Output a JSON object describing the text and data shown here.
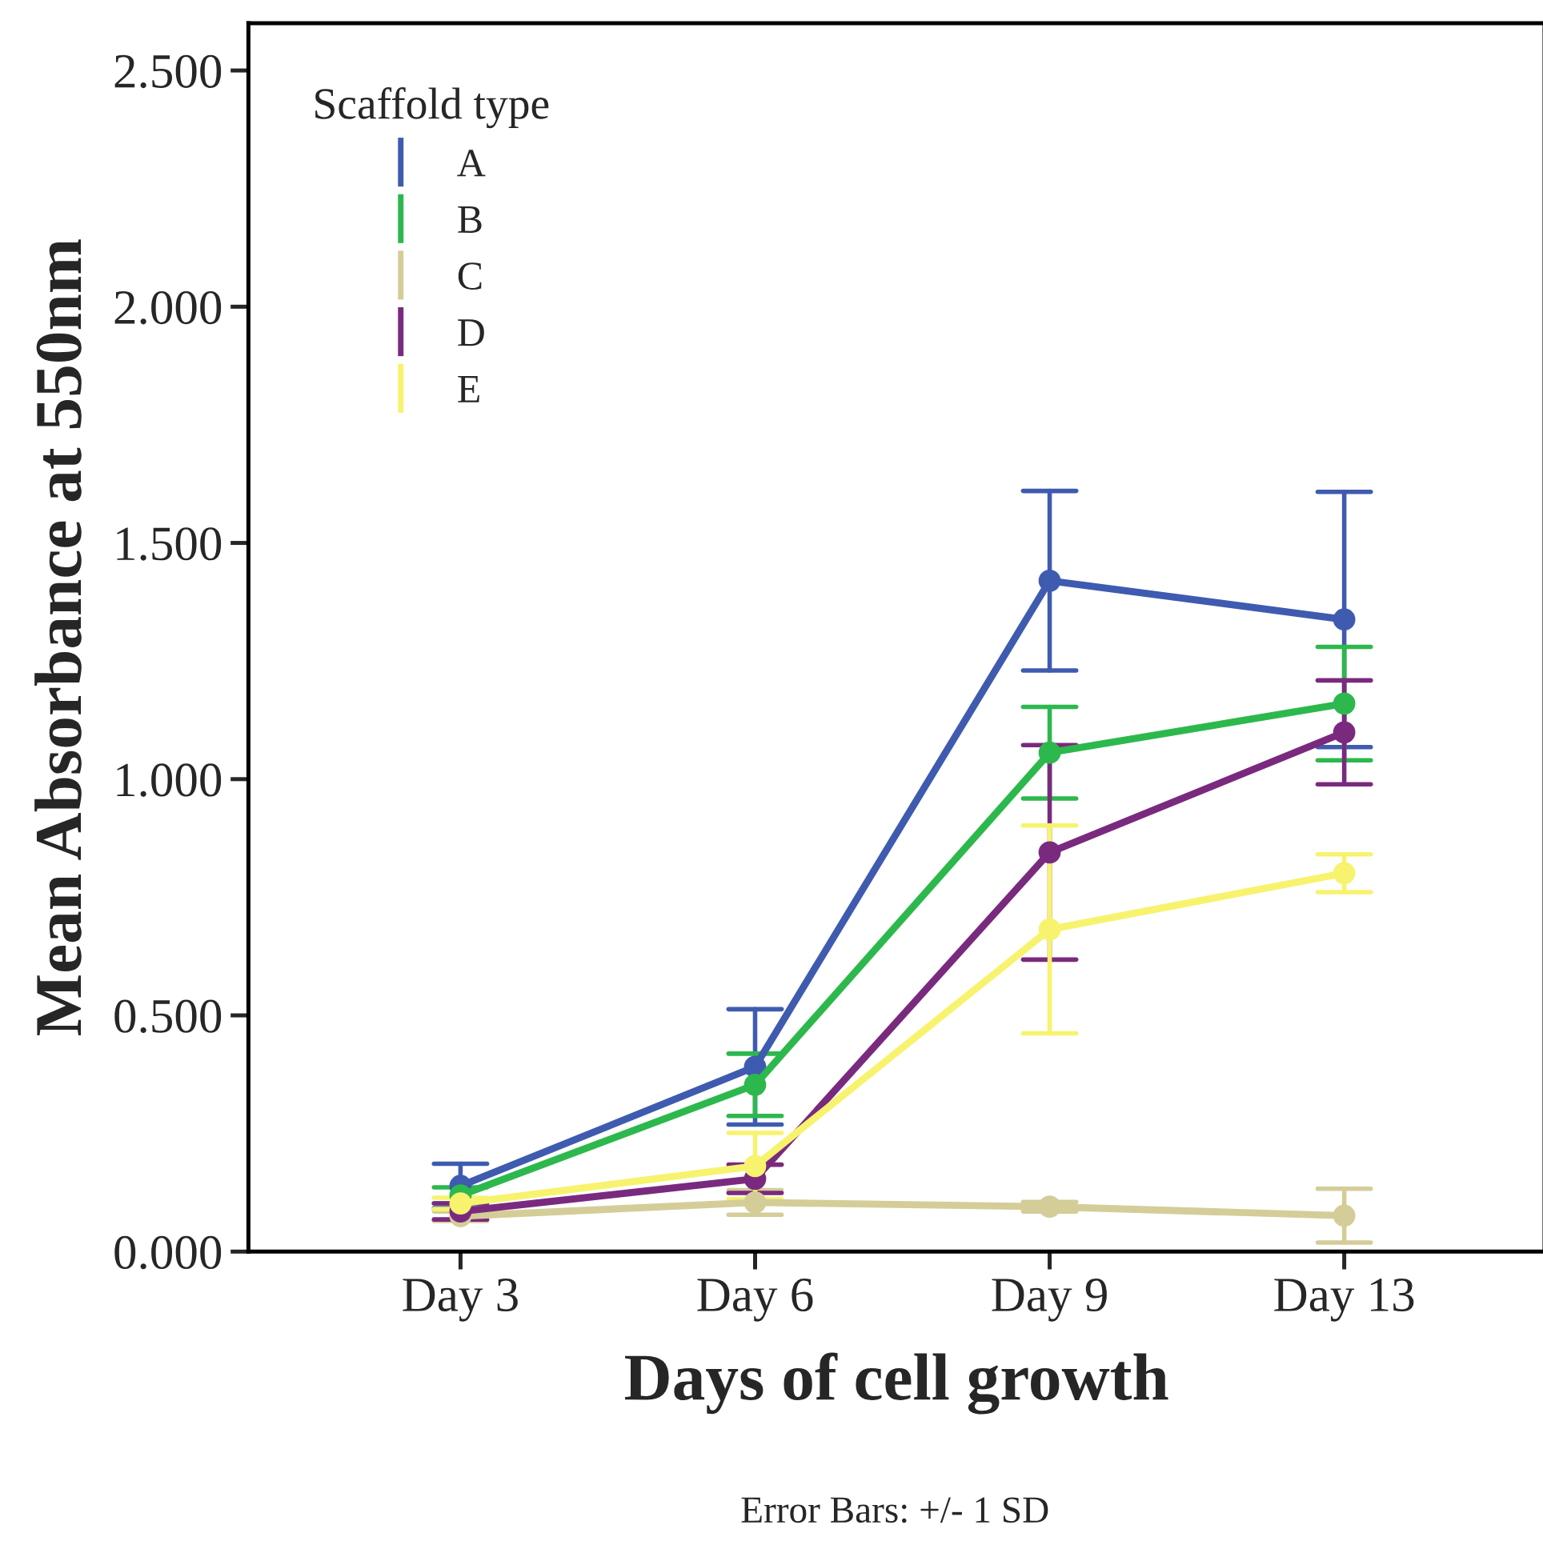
{
  "chart_data": {
    "type": "line",
    "xlabel": "Days of cell growth",
    "ylabel": "Mean Absorbance at 550nm",
    "legend_title": "Scaffold type",
    "categories": [
      "Day 3",
      "Day 6",
      "Day 9",
      "Day 13"
    ],
    "series": [
      {
        "name": "A",
        "color": "#3f5bb0",
        "values": [
          0.139,
          0.391,
          1.42,
          1.338
        ],
        "errors": [
          0.047,
          0.122,
          0.19,
          0.27
        ]
      },
      {
        "name": "B",
        "color": "#2db84d",
        "values": [
          0.119,
          0.353,
          1.056,
          1.16
        ],
        "errors": [
          0.017,
          0.066,
          0.097,
          0.12
        ]
      },
      {
        "name": "C",
        "color": "#d4cd98",
        "values": [
          0.075,
          0.104,
          0.095,
          0.076
        ],
        "errors": [
          0.01,
          0.026,
          0.01,
          0.057
        ]
      },
      {
        "name": "D",
        "color": "#7a2a7e",
        "values": [
          0.085,
          0.154,
          0.845,
          1.099
        ],
        "errors": [
          0.017,
          0.03,
          0.227,
          0.11
        ]
      },
      {
        "name": "E",
        "color": "#f7f36e",
        "values": [
          0.102,
          0.181,
          0.682,
          0.801
        ],
        "errors": [
          0.012,
          0.07,
          0.22,
          0.04
        ]
      }
    ],
    "ylim": [
      0,
      2.6
    ],
    "yticks": [
      {
        "value": 0,
        "label": "0.000"
      },
      {
        "value": 0.5,
        "label": "0.500"
      },
      {
        "value": 1,
        "label": "1.000"
      },
      {
        "value": 1.5,
        "label": "1.500"
      },
      {
        "value": 2,
        "label": "2.000"
      },
      {
        "value": 2.5,
        "label": "2.500"
      }
    ],
    "marker": "circle",
    "line_style": "solid",
    "legend": "top left",
    "grid": false,
    "annotations": [
      "Error Bars: +/- 1 SD"
    ]
  }
}
